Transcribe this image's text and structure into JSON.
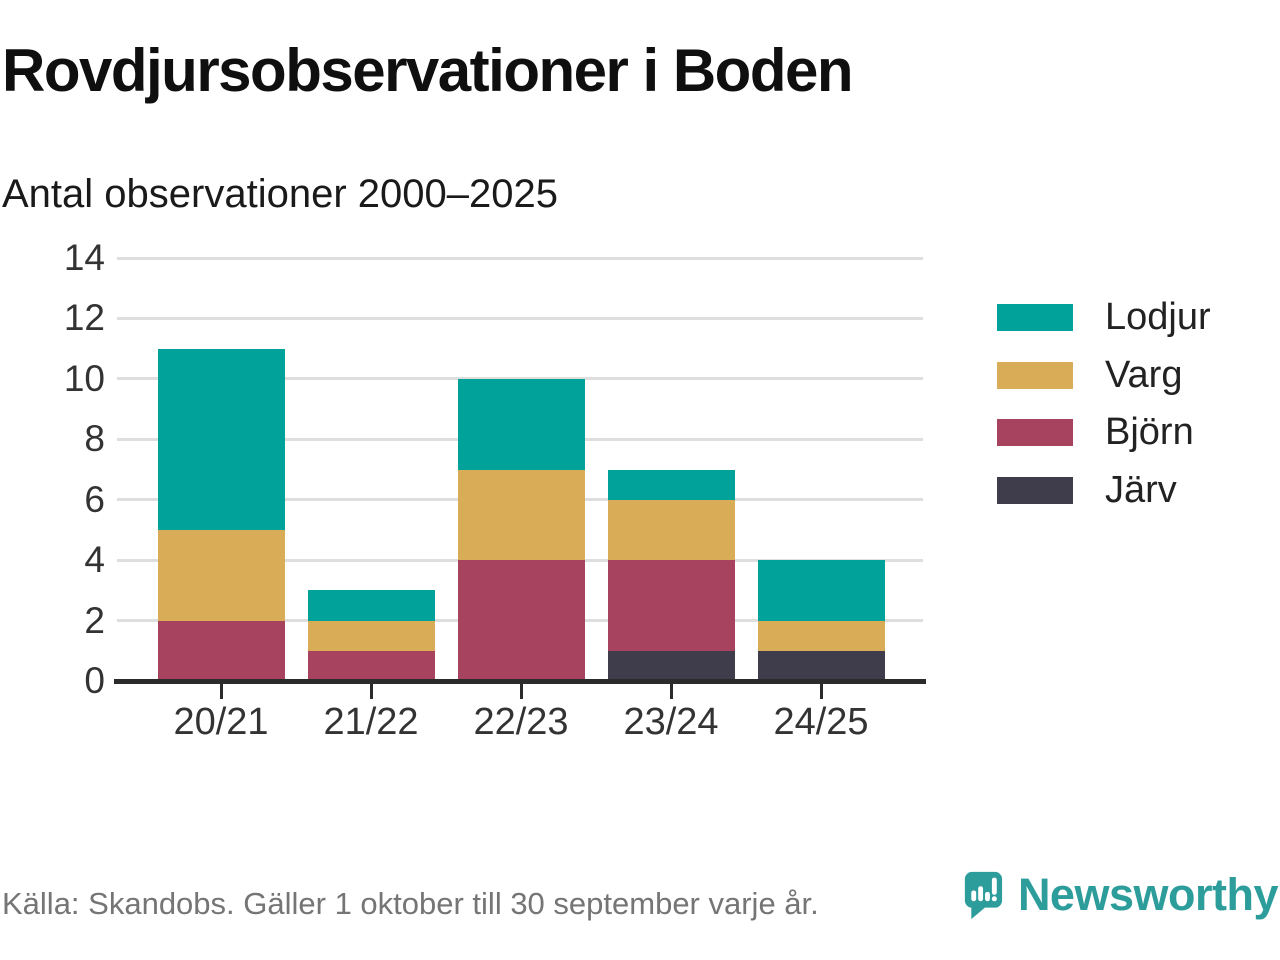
{
  "title": "Rovdjursobservationer i Boden",
  "subtitle": "Antal observationer 2000–2025",
  "footer": {
    "source": "Källa: Skandobs. Gäller 1 oktober till 30 september varje år."
  },
  "branding": {
    "name": "Newsworthy",
    "color": "#2d9d9b",
    "icon": "speech-bubble-bar-chart-icon"
  },
  "chart_data": {
    "type": "bar",
    "stacked": true,
    "title": "Rovdjursobservationer i Boden",
    "subtitle": "Antal observationer 2000–2025",
    "categories": [
      "20/21",
      "21/22",
      "22/23",
      "23/24",
      "24/25"
    ],
    "series": [
      {
        "name": "Lodjur",
        "color": "#00A299",
        "values": [
          6,
          1,
          3,
          1,
          2
        ]
      },
      {
        "name": "Varg",
        "color": "#D9AC57",
        "values": [
          3,
          1,
          3,
          2,
          1
        ]
      },
      {
        "name": "Björn",
        "color": "#A8435F",
        "values": [
          2,
          1,
          4,
          3,
          0
        ]
      },
      {
        "name": "Järv",
        "color": "#3F3C4C",
        "values": [
          0,
          0,
          0,
          1,
          1
        ]
      }
    ],
    "totals": [
      11,
      3,
      10,
      7,
      4
    ],
    "stack_order_bottom_to_top": [
      "Järv",
      "Björn",
      "Varg",
      "Lodjur"
    ],
    "yticks": [
      0,
      2,
      4,
      6,
      8,
      10,
      12,
      14
    ],
    "ylim": [
      0,
      14
    ],
    "xlabel": "",
    "ylabel": "",
    "grid": true,
    "legend_position": "right"
  }
}
